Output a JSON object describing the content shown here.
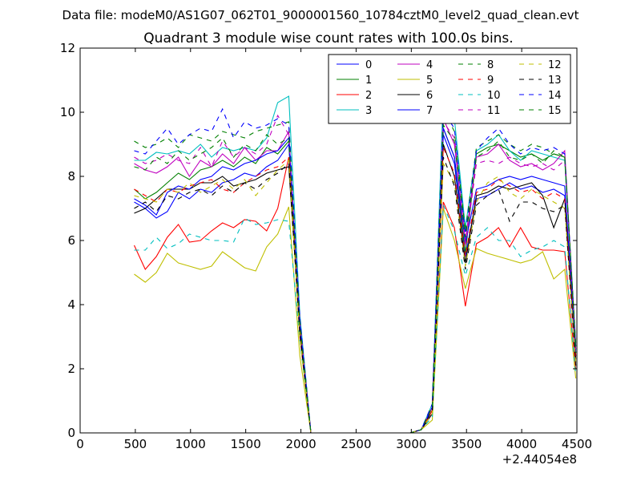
{
  "suptitle": "Data file: modeM0/AS1G07_062T01_9000001560_10784cztM0_level2_quad_clean.evt",
  "chart_data": {
    "type": "line",
    "title": "Quadrant 3 module wise count rates with 100.0s bins.",
    "xlabel": "",
    "ylabel": "",
    "x_offset_label": "+2.44054e8",
    "xlim": [
      0,
      4500
    ],
    "ylim": [
      0,
      12
    ],
    "x_ticks": [
      0,
      500,
      1000,
      1500,
      2000,
      2500,
      3000,
      3500,
      4000,
      4500
    ],
    "x_tick_labels": [
      "0",
      "500",
      "1000",
      "1500",
      "2000",
      "2500",
      "3000",
      "3500",
      "4000",
      "4500"
    ],
    "y_ticks": [
      0,
      2,
      4,
      6,
      8,
      10,
      12
    ],
    "y_tick_labels": [
      "0",
      "2",
      "4",
      "6",
      "8",
      "10",
      "12"
    ],
    "legend_position": "top-right",
    "x": [
      490,
      590,
      690,
      790,
      890,
      990,
      1090,
      1190,
      1290,
      1390,
      1490,
      1590,
      1690,
      1790,
      1890,
      1990,
      2090,
      2190,
      2290,
      2390,
      2490,
      2590,
      2690,
      2790,
      2890,
      2990,
      3090,
      3190,
      3290,
      3390,
      3490,
      3590,
      3690,
      3790,
      3890,
      3990,
      4090,
      4190,
      4290,
      4390,
      4490
    ],
    "series": [
      {
        "name": "0",
        "color": "#0000ff",
        "dash": false,
        "values": [
          7.2,
          7.0,
          6.7,
          6.9,
          7.5,
          7.3,
          7.6,
          7.5,
          7.8,
          7.9,
          8.1,
          8.0,
          8.3,
          8.5,
          9.0,
          3.5,
          0,
          0,
          0,
          0,
          0,
          0,
          0,
          0,
          0,
          0,
          0.1,
          0.8,
          9.3,
          8.4,
          5.5,
          7.3,
          7.4,
          7.6,
          7.8,
          7.6,
          7.7,
          7.5,
          7.6,
          7.4,
          2.4
        ]
      },
      {
        "name": "1",
        "color": "#008000",
        "dash": false,
        "values": [
          7.6,
          7.3,
          7.5,
          7.8,
          8.1,
          7.9,
          8.2,
          8.3,
          8.5,
          8.3,
          8.6,
          8.4,
          8.9,
          8.7,
          9.1,
          3.3,
          0,
          0,
          0,
          0,
          0,
          0,
          0,
          0,
          0,
          0,
          0.1,
          0.7,
          9.5,
          8.6,
          5.6,
          8.7,
          8.9,
          9.0,
          8.8,
          8.6,
          8.7,
          8.5,
          8.7,
          8.6,
          2.7
        ]
      },
      {
        "name": "2",
        "color": "#ff0000",
        "dash": false,
        "values": [
          5.85,
          5.1,
          5.5,
          6.1,
          6.5,
          5.95,
          6.0,
          6.3,
          6.55,
          6.4,
          6.65,
          6.6,
          6.3,
          7.0,
          8.6,
          3.0,
          0,
          0,
          0,
          0,
          0,
          0,
          0,
          0,
          0,
          0,
          0.1,
          0.6,
          7.2,
          6.4,
          3.95,
          5.9,
          6.1,
          6.4,
          5.8,
          6.4,
          5.8,
          5.7,
          5.7,
          5.65,
          2.0
        ]
      },
      {
        "name": "3",
        "color": "#00bfbf",
        "dash": false,
        "values": [
          8.5,
          8.5,
          8.75,
          8.7,
          8.8,
          8.7,
          9.0,
          8.6,
          8.9,
          8.8,
          8.9,
          8.8,
          9.2,
          10.3,
          10.5,
          3.7,
          0,
          0,
          0,
          0,
          0,
          0,
          0,
          0,
          0,
          0,
          0.1,
          0.9,
          10.6,
          9.8,
          6.4,
          8.8,
          9.0,
          9.3,
          8.8,
          8.5,
          8.8,
          8.7,
          8.6,
          8.5,
          2.6
        ]
      },
      {
        "name": "4",
        "color": "#bf00bf",
        "dash": false,
        "values": [
          8.4,
          8.2,
          8.1,
          8.3,
          8.6,
          8.0,
          8.5,
          8.3,
          8.7,
          8.4,
          8.9,
          8.5,
          8.8,
          8.8,
          9.4,
          3.4,
          0,
          0,
          0,
          0,
          0,
          0,
          0,
          0,
          0,
          0,
          0.1,
          0.8,
          9.8,
          9.0,
          6.0,
          8.6,
          8.7,
          9.0,
          8.5,
          8.3,
          8.4,
          8.2,
          8.4,
          8.8,
          2.5
        ]
      },
      {
        "name": "5",
        "color": "#bfbf00",
        "dash": false,
        "values": [
          4.95,
          4.7,
          5.0,
          5.6,
          5.3,
          5.2,
          5.1,
          5.2,
          5.65,
          5.4,
          5.15,
          5.05,
          5.8,
          6.2,
          7.05,
          2.4,
          0,
          0,
          0,
          0,
          0,
          0,
          0,
          0,
          0,
          0,
          0.1,
          0.4,
          7.0,
          6.0,
          4.5,
          5.75,
          5.6,
          5.5,
          5.4,
          5.3,
          5.4,
          5.65,
          4.8,
          5.1,
          1.7
        ]
      },
      {
        "name": "6",
        "color": "#000000",
        "dash": false,
        "values": [
          6.85,
          7.0,
          7.3,
          7.6,
          7.6,
          7.6,
          7.8,
          7.8,
          8.0,
          7.7,
          7.8,
          7.9,
          8.1,
          8.2,
          8.3,
          3.2,
          0,
          0,
          0,
          0,
          0,
          0,
          0,
          0,
          0,
          0,
          0.1,
          0.7,
          9.0,
          8.0,
          5.3,
          7.4,
          7.5,
          7.7,
          7.6,
          7.7,
          7.8,
          7.4,
          6.4,
          7.3,
          2.3
        ]
      },
      {
        "name": "7",
        "color": "#0000ff",
        "dash": false,
        "values": [
          7.3,
          7.1,
          6.8,
          7.5,
          7.7,
          7.6,
          7.9,
          8.0,
          8.3,
          8.2,
          8.4,
          8.5,
          8.7,
          8.8,
          9.2,
          3.4,
          0,
          0,
          0,
          0,
          0,
          0,
          0,
          0,
          0,
          0,
          0.1,
          0.8,
          9.5,
          8.6,
          5.9,
          7.6,
          7.7,
          7.9,
          8.0,
          7.9,
          8.0,
          7.9,
          7.8,
          7.7,
          2.5
        ]
      },
      {
        "name": "8",
        "color": "#008000",
        "dash": true,
        "values": [
          9.1,
          8.9,
          9.0,
          9.2,
          8.9,
          9.3,
          9.2,
          9.1,
          9.4,
          9.3,
          9.2,
          9.4,
          9.5,
          9.6,
          9.7,
          3.6,
          0,
          0,
          0,
          0,
          0,
          0,
          0,
          0,
          0,
          0,
          0.1,
          0.9,
          10.1,
          9.4,
          6.3,
          8.9,
          9.1,
          9.3,
          9.0,
          8.8,
          9.0,
          8.9,
          8.7,
          8.6,
          2.8
        ]
      },
      {
        "name": "9",
        "color": "#ff0000",
        "dash": true,
        "values": [
          7.6,
          7.4,
          7.2,
          7.6,
          7.5,
          7.7,
          7.8,
          7.9,
          7.6,
          7.5,
          7.8,
          8.0,
          8.2,
          8.3,
          8.6,
          3.2,
          0,
          0,
          0,
          0,
          0,
          0,
          0,
          0,
          0,
          0,
          0.1,
          0.7,
          8.9,
          8.1,
          5.5,
          7.5,
          7.6,
          7.9,
          7.7,
          7.5,
          7.6,
          7.3,
          7.5,
          7.3,
          2.4
        ]
      },
      {
        "name": "10",
        "color": "#00bfbf",
        "dash": true,
        "values": [
          5.7,
          5.7,
          6.1,
          5.75,
          5.9,
          6.2,
          6.1,
          6.0,
          6.0,
          5.95,
          6.7,
          6.5,
          6.55,
          6.65,
          6.6,
          2.9,
          0,
          0,
          0,
          0,
          0,
          0,
          0,
          0,
          0,
          0,
          0.1,
          0.5,
          7.1,
          6.3,
          4.9,
          6.1,
          6.4,
          6.0,
          6.0,
          5.5,
          5.7,
          5.8,
          6.0,
          5.8,
          1.8
        ]
      },
      {
        "name": "11",
        "color": "#bf00bf",
        "dash": true,
        "values": [
          8.6,
          8.4,
          8.5,
          8.7,
          8.5,
          8.4,
          8.9,
          8.3,
          9.1,
          8.6,
          8.9,
          8.7,
          9.0,
          9.9,
          9.3,
          3.5,
          0,
          0,
          0,
          0,
          0,
          0,
          0,
          0,
          0,
          0,
          0.1,
          0.8,
          9.7,
          9.2,
          5.8,
          8.4,
          8.5,
          8.4,
          8.6,
          8.4,
          8.3,
          8.4,
          8.2,
          8.5,
          2.6
        ]
      },
      {
        "name": "12",
        "color": "#bfbf00",
        "dash": true,
        "values": [
          7.4,
          7.3,
          7.2,
          7.6,
          7.5,
          7.8,
          7.5,
          7.7,
          7.9,
          7.6,
          7.9,
          7.4,
          7.8,
          8.2,
          8.5,
          3.0,
          0,
          0,
          0,
          0,
          0,
          0,
          0,
          0,
          0,
          0,
          0.1,
          0.6,
          8.4,
          7.8,
          5.2,
          7.2,
          7.8,
          8.0,
          7.5,
          7.3,
          7.6,
          7.4,
          7.2,
          7.0,
          2.2
        ]
      },
      {
        "name": "13",
        "color": "#000000",
        "dash": true,
        "values": [
          7.0,
          7.2,
          6.9,
          7.4,
          7.3,
          7.5,
          7.6,
          7.4,
          7.7,
          7.5,
          7.8,
          7.6,
          7.9,
          8.1,
          8.4,
          3.1,
          0,
          0,
          0,
          0,
          0,
          0,
          0,
          0,
          0,
          0,
          0.1,
          0.6,
          8.6,
          7.7,
          5.1,
          7.1,
          7.4,
          7.6,
          6.6,
          7.2,
          7.2,
          7.0,
          6.9,
          7.1,
          2.1
        ]
      },
      {
        "name": "14",
        "color": "#0000ff",
        "dash": true,
        "values": [
          8.8,
          8.7,
          9.1,
          9.5,
          9.0,
          9.3,
          9.5,
          9.4,
          10.1,
          9.2,
          9.7,
          9.5,
          9.6,
          9.8,
          9.6,
          3.6,
          0,
          0,
          0,
          0,
          0,
          0,
          0,
          0,
          0,
          0,
          0.1,
          0.9,
          10.0,
          9.5,
          6.2,
          8.8,
          9.2,
          9.5,
          9.0,
          8.7,
          8.9,
          8.8,
          8.9,
          8.7,
          2.7
        ]
      },
      {
        "name": "15",
        "color": "#008000",
        "dash": true,
        "values": [
          8.3,
          8.2,
          8.6,
          8.4,
          8.8,
          8.5,
          8.7,
          8.9,
          9.2,
          8.6,
          9.0,
          8.8,
          9.3,
          9.0,
          9.2,
          3.4,
          0,
          0,
          0,
          0,
          0,
          0,
          0,
          0,
          0,
          0,
          0.1,
          0.8,
          9.6,
          9.1,
          6.1,
          8.6,
          8.8,
          9.1,
          8.6,
          8.5,
          8.7,
          8.4,
          8.8,
          8.6,
          2.5
        ]
      }
    ]
  }
}
